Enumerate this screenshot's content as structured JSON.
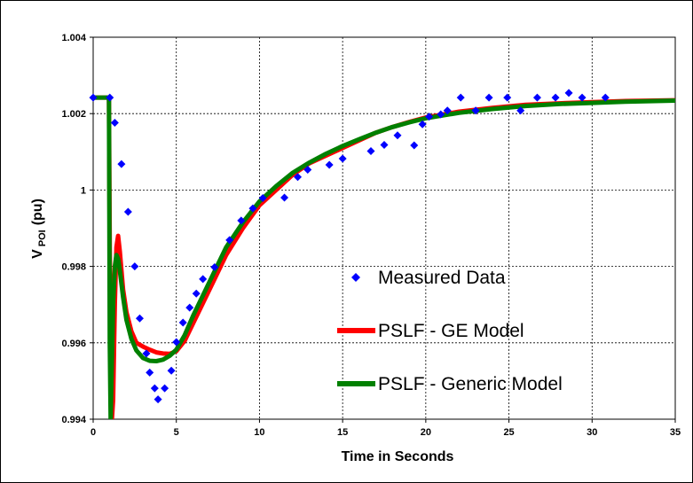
{
  "chart_data": {
    "type": "line",
    "xlabel": "Time in Seconds",
    "ylabel_main": "V",
    "ylabel_sub": "POI",
    "ylabel_unit": "(pu)",
    "xlim": [
      0,
      35
    ],
    "ylim": [
      0.994,
      1.004
    ],
    "xticks": [
      0,
      5,
      10,
      15,
      20,
      25,
      30,
      35
    ],
    "xtick_labels": [
      "0",
      "5",
      "10",
      "15",
      "20",
      "25",
      "30",
      "35"
    ],
    "yticks": [
      0.994,
      0.996,
      0.998,
      1.0,
      1.002,
      1.004
    ],
    "ytick_labels": [
      "0.994",
      "0.996",
      "0.998",
      "1",
      "1.002",
      "1.004"
    ],
    "grid": true,
    "legend_position": "center-right",
    "colors": {
      "measured": "#0000FF",
      "ge": "#FF0000",
      "generic": "#008000"
    },
    "series": [
      {
        "name": "Measured Data",
        "style": "markers",
        "marker": "diamond",
        "x": [
          0,
          1.0,
          1.3,
          1.7,
          2.1,
          2.5,
          2.8,
          3.2,
          3.4,
          3.7,
          3.9,
          4.3,
          4.7,
          5.0,
          5.4,
          5.8,
          6.2,
          6.6,
          7.3,
          8.2,
          8.9,
          9.6,
          10.2,
          11.5,
          12.3,
          12.9,
          14.2,
          15.0,
          16.7,
          17.5,
          18.3,
          19.3,
          19.8,
          20.2,
          20.9,
          21.3,
          22.1,
          23.0,
          23.8,
          24.9,
          25.7,
          26.7,
          27.8,
          28.6,
          29.4,
          30.8
        ],
        "y": [
          1.00242,
          1.00242,
          1.00176,
          1.00068,
          0.99943,
          0.998,
          0.99664,
          0.99572,
          0.99522,
          0.99481,
          0.99452,
          0.99481,
          0.99527,
          0.99602,
          0.99653,
          0.99692,
          0.99729,
          0.99767,
          0.99798,
          0.99869,
          0.9992,
          0.99952,
          0.99979,
          0.9998,
          1.00034,
          1.00053,
          1.00066,
          1.00082,
          1.00102,
          1.00118,
          1.00143,
          1.00117,
          1.00172,
          1.00192,
          1.00198,
          1.00208,
          1.00242,
          1.00208,
          1.00242,
          1.00242,
          1.00208,
          1.00242,
          1.00242,
          1.00254,
          1.00242,
          1.00242
        ]
      },
      {
        "name": "PSLF - GE Model",
        "style": "line",
        "x": [
          0,
          0.95,
          1.0,
          1.05,
          1.1,
          1.2,
          1.3,
          1.4,
          1.5,
          1.6,
          1.8,
          2.0,
          2.3,
          2.6,
          3.0,
          3.4,
          3.8,
          4.2,
          4.6,
          5.0,
          5.5,
          6.0,
          7.0,
          8.0,
          9.0,
          10.0,
          11.0,
          12.0,
          13.0,
          14.0,
          15.0,
          16.0,
          17.0,
          18.0,
          19.0,
          20.0,
          22.0,
          24.0,
          26.0,
          28.0,
          30.0,
          32.0,
          35.0
        ],
        "y": [
          1.00242,
          1.00242,
          0.9985,
          0.996,
          0.9938,
          0.9945,
          0.997,
          0.9985,
          0.9988,
          0.9984,
          0.9974,
          0.9968,
          0.9963,
          0.996,
          0.9959,
          0.99582,
          0.99575,
          0.99572,
          0.99571,
          0.99578,
          0.99605,
          0.9965,
          0.9974,
          0.9983,
          0.999,
          0.9996,
          1.0,
          1.0004,
          1.0007,
          1.0009,
          1.0011,
          1.0013,
          1.0015,
          1.00165,
          1.00178,
          1.0019,
          1.00205,
          1.00215,
          1.00223,
          1.00227,
          1.0023,
          1.00233,
          1.00235
        ]
      },
      {
        "name": "PSLF - Generic Model",
        "style": "line",
        "x": [
          0,
          0.95,
          1.0,
          1.05,
          1.1,
          1.2,
          1.3,
          1.4,
          1.5,
          1.6,
          1.8,
          2.0,
          2.3,
          2.6,
          3.0,
          3.4,
          3.8,
          4.2,
          4.6,
          5.0,
          5.5,
          6.0,
          7.0,
          8.0,
          9.0,
          10.0,
          11.0,
          12.0,
          13.0,
          14.0,
          15.0,
          16.0,
          17.0,
          18.0,
          19.0,
          20.0,
          22.0,
          24.0,
          26.0,
          28.0,
          30.0,
          32.0,
          35.0
        ],
        "y": [
          1.00242,
          1.00242,
          0.996,
          0.994,
          0.995,
          0.997,
          0.998,
          0.9983,
          0.9982,
          0.9979,
          0.9972,
          0.9966,
          0.9961,
          0.9958,
          0.9956,
          0.99553,
          0.99552,
          0.99556,
          0.99566,
          0.99582,
          0.9962,
          0.9967,
          0.9976,
          0.9985,
          0.99915,
          0.9997,
          1.0001,
          1.00045,
          1.00072,
          1.00095,
          1.00115,
          1.00133,
          1.0015,
          1.00165,
          1.00177,
          1.00188,
          1.00202,
          1.00212,
          1.0022,
          1.00225,
          1.00228,
          1.00231,
          1.00234
        ]
      }
    ]
  }
}
